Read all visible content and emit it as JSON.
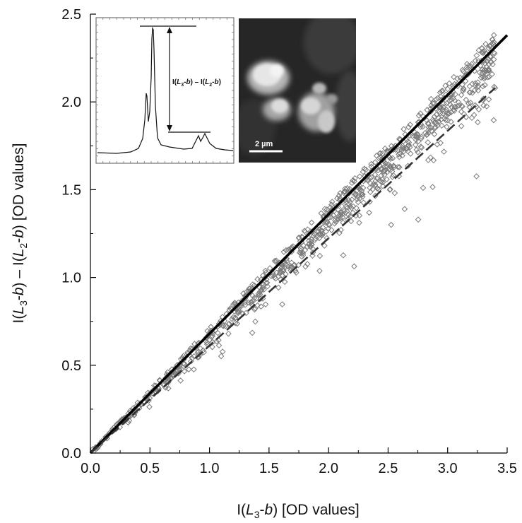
{
  "chart_data": {
    "type": "scatter",
    "xlabel": {
      "pre": "I(",
      "italic": "L",
      "sub": "3",
      "post": "-",
      "italic2": "b",
      "tail": ") [OD values]"
    },
    "ylabel": {
      "p1": "I(",
      "i1": "L",
      "s1": "3",
      "m1": "-",
      "i2": "b",
      "p2": ") – I(",
      "i3": "L",
      "s2": "2",
      "m2": "-",
      "i4": "b",
      "p3": ") [OD values]"
    },
    "xlim": [
      0,
      3.5
    ],
    "ylim": [
      0,
      2.5
    ],
    "x_ticks": [
      "0.0",
      "0.5",
      "1.0",
      "1.5",
      "2.0",
      "2.5",
      "3.0",
      "3.5"
    ],
    "y_ticks": [
      "0.0",
      "0.5",
      "1.0",
      "1.5",
      "2.0",
      "2.5"
    ],
    "grid": false,
    "series": [
      {
        "kind": "scatter",
        "marker": "diamond",
        "color": "#7a7a7a",
        "x_range": [
          0,
          3.4
        ],
        "y_approx": "0.66 * x"
      },
      {
        "kind": "line",
        "style": "solid",
        "color": "#000000",
        "x": [
          0,
          3.5
        ],
        "y": [
          0,
          2.38
        ]
      },
      {
        "kind": "line",
        "style": "dashed",
        "color": "#333333",
        "x": [
          0,
          3.4
        ],
        "y": [
          0,
          2.08
        ]
      }
    ],
    "inset_spectrum": {
      "annotation": {
        "a": "I(",
        "b": "L",
        "c": "3",
        "d": "-",
        "e": "b",
        "f": ") – I(",
        "g": "L",
        "h": "2",
        "i": "-",
        "j": "b",
        "k": ")"
      }
    },
    "inset_image": {
      "scale_bar_label": "2 µm"
    }
  }
}
